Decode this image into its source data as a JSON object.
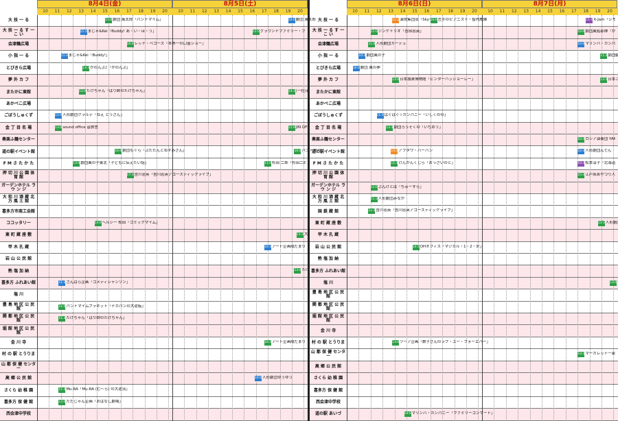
{
  "days": [
    {
      "label": "8月4日(金)",
      "hours": [
        "10",
        "11",
        "12",
        "13",
        "14",
        "15",
        "16",
        "17",
        "18",
        "19",
        "20"
      ]
    },
    {
      "label": "8月5日(土)",
      "hours": [
        "10",
        "11",
        "12",
        "13",
        "14",
        "15",
        "16",
        "17",
        "18",
        "19",
        "20"
      ]
    },
    {
      "label": "8月6日(日)",
      "hours": [
        "10",
        "11",
        "12",
        "13",
        "14",
        "15",
        "16",
        "17",
        "18",
        "19",
        "20"
      ]
    },
    {
      "label": "8月7日(月)",
      "hours": [
        "10",
        "11",
        "12",
        "13",
        "14",
        "15",
        "16",
        "17",
        "18",
        "19",
        "20"
      ]
    }
  ],
  "left_venues": [
    "大 技 一 る",
    "大 技 一 る す 一 こ い",
    "会津鶴広場",
    "小 指 一 る",
    "とびきら広場",
    "夢 外 カ フ",
    "またかに東館",
    "あかべこ広場",
    "ごぼうしゅくず",
    "金 丁 目 名 場",
    "奏楽ふ鶴センター",
    "道の駅イベント館",
    "F M さ た か た",
    "押 切 川 公 園 体 育 館",
    "ガーデンホテル ラ ウ ン ジ",
    "大 和 川 酒 蔵 北 方 風 土 館",
    "喜多方市商工会館",
    "ココッタリー",
    "東 町 蔵 座 敷",
    "甲 木 孔 蔵",
    "岩 山 公 民 館",
    "熱 塩 加 納",
    "喜多方 ふれあい館",
    "塩 川",
    "豊 島 地 区 公 民 館",
    "関 都 地 区 公 民 館",
    "堀 館 地 区 公 民 館",
    "金 川 寺",
    "村 の 駅 とうりま",
    "山 都 保 健 センター",
    "高 郷 公 民 館",
    "さくら 幼 稚 園",
    "喜多方 保 健 館",
    "西会津中学校"
  ],
  "right_venues": [
    "大 技 一 る",
    "大 技 一 る す 一 こ い",
    "会津鶴広場",
    "小 指 一 る",
    "とびきら広場",
    "夢 外 カ フ",
    "またかに東館",
    "あかべこ広場",
    "ごぼうしゅくず",
    "金 丁 目 名 場",
    "奏楽ふ鶴センター",
    "道の駅イベント館",
    "F M さ た か た",
    "押 切 川 公 園 体 育 館",
    "ガーデンホテル ラ ウ ン ジ",
    "大 和 川 酒 蔵 北 方 風 土 館",
    "国 鉄 蔵 館",
    "東 町 蔵 座 敷",
    "甲 木 孔 蔵",
    "岩 山 公 民 館",
    "熱 塩 加 納",
    "喜多方 ふれあい館",
    "塩 川",
    "豊 島 地 区 公 民 館",
    "関 都 地 区 公 民 館",
    "堀 館 地 区 公 民 館",
    "金 川 寺",
    "村 の 駅 とうりま",
    "山 都 保 健 センター",
    "高 郷 公 民 館",
    "さくら 幼 稚 園",
    "喜多方 保 健 館",
    "西会津中学校",
    "道の駅 あいづ"
  ],
  "events_left": [
    {
      "row": 0,
      "h": 15.2,
      "t": "13:00",
      "text": "劇団 風太郎「パントマイム」",
      "c": "g"
    },
    {
      "row": 1,
      "h": 13.1,
      "t": "11:30",
      "text": "まじゃ&Kei「Buddy! あ・い・ほ・う」",
      "c": "b"
    },
    {
      "row": 2,
      "h": 17.0,
      "t": "16:00",
      "text": "レッド・ペコーズ「世界一の口笛ショー」",
      "c": "g"
    },
    {
      "row": 3,
      "h": 11.5,
      "t": "11:30",
      "text": "まじゃ&Kei「Buddy!」",
      "c": "b"
    },
    {
      "row": 4,
      "h": 13.3,
      "t": "13:30",
      "text": "かのんぶ♪「かのんぶ」",
      "c": "g"
    },
    {
      "row": 6,
      "h": 13.0,
      "t": "13:00",
      "text": "たけちゃん「はり師のたけちゃん」",
      "c": "g"
    },
    {
      "row": 8,
      "h": 11.0,
      "t": "11:00",
      "text": "人形劇団クラルテ「ねえ とうさん」",
      "c": "b"
    },
    {
      "row": 9,
      "h": 11.0,
      "t": "13:00",
      "text": "sound office 音旅舎",
      "c": "g"
    },
    {
      "row": 11,
      "h": 16.0,
      "t": "16:00",
      "text": "劇団もぐら「ぶたたんとねずみさん」",
      "c": "g"
    },
    {
      "row": 12,
      "h": 12.5,
      "t": "13:00",
      "text": "劇団風の子東北「子どもに伝えたい話」",
      "c": "g"
    },
    {
      "row": 13,
      "h": 17.0,
      "t": "17:30",
      "text": "吉川忠英「吉川忠英アコースティックライブ」",
      "c": "g"
    },
    {
      "row": 17,
      "h": 14.3,
      "t": "14:00",
      "text": "ヘルシー 松田「コミックマイム」",
      "c": "g"
    },
    {
      "row": 22,
      "h": 11.3,
      "t": "11:30",
      "text": "ざんばら企画「コメディシャンソン」",
      "c": "b"
    },
    {
      "row": 24,
      "h": 11.3,
      "t": "11:00",
      "text": "パントマイムプラネット「チカパンの大逆転」",
      "c": "g"
    },
    {
      "row": 25,
      "h": 11.3,
      "t": "11:30",
      "text": "たけちゃん「はり師のたけちゃん」",
      "c": "g"
    },
    {
      "row": 31,
      "h": 11.3,
      "t": "11:30",
      "text": "Mu-RA「Mu-RA (む〜ら) の大逆流」",
      "c": "g"
    },
    {
      "row": 32,
      "h": 11.3,
      "t": "13:00",
      "text": "ただじゃん企画「おはなし劇場」",
      "c": "g"
    }
  ],
  "events_left2": [
    {
      "row": 0,
      "h": 30.5,
      "t": "10:00",
      "text": "劇団 風太郎 マジックショー",
      "c": "b"
    },
    {
      "row": 1,
      "h": 27.5,
      "t": "11:00",
      "text": "グラウンドファミリー・ブレジャー",
      "c": "g"
    },
    {
      "row": 3,
      "h": 33.0,
      "t": "14:00",
      "text": "日本独楽博物館「ビンター タンレーハッショーレー」",
      "c": "g"
    },
    {
      "row": 6,
      "h": 30.5,
      "t": "14:30",
      "text": "(一社)喜多方協会「喜多方劇場」",
      "c": "g"
    },
    {
      "row": 8,
      "h": 35.0,
      "t": "16:00",
      "text": "はぐはぐ☆カンパニー",
      "c": "o"
    },
    {
      "row": 9,
      "h": 30.5,
      "t": "11:00",
      "text": "JIN OFFICE「ジン・マジスケ」",
      "c": "g"
    },
    {
      "row": 11,
      "h": 31.0,
      "t": "10:00",
      "text": "パントマイムプラネット",
      "c": "g"
    },
    {
      "row": 12,
      "h": 28.5,
      "t": "11:00",
      "text": "杉田 二郎「杉田二郎コンサート」",
      "c": "g"
    },
    {
      "row": 13,
      "h": 35.0,
      "t": "16:00",
      "text": "ざんばら企画",
      "c": "o"
    },
    {
      "row": 15,
      "h": 34.0,
      "t": "14:30",
      "text": "日本サロンコンサート協会",
      "c": "g"
    },
    {
      "row": 18,
      "h": 31.2,
      "t": "11:30",
      "text": "大部 裕太「大部裕太」",
      "c": "g"
    },
    {
      "row": 18,
      "h": 37.2,
      "t": "15:00",
      "text": "ヘルシー 松田「コミックマイム」",
      "c": "g"
    },
    {
      "row": 19,
      "h": 28.5,
      "t": "10:30",
      "text": "アート企画陽だまり",
      "c": "b"
    },
    {
      "row": 21,
      "h": 31.0,
      "t": "13:00",
      "text": "たけちゃん「はり師のたけちゃん」",
      "c": "g"
    },
    {
      "row": 23,
      "h": 36.5,
      "t": "16:00",
      "text": "レッド・ペコーズ「世界一の口笛ショー」",
      "c": "g"
    },
    {
      "row": 27,
      "h": 28.5,
      "t": "10:30",
      "text": "アート企画陽だまり「高場さとし」",
      "c": "g"
    },
    {
      "row": 30,
      "h": 27.7,
      "t": "10:00",
      "text": "人形劇団ゆうゆう",
      "c": "b"
    },
    {
      "row": 33,
      "h": 32.5,
      "t": "13:30",
      "text": "Mu-RA「Mu-RA (む〜ら) の大逆流」",
      "c": "g"
    }
  ],
  "events_right": [
    {
      "row": 0,
      "h": 13.3,
      "t": "11:30",
      "text": "演技集団旧「Sky〜」",
      "c": "o"
    },
    {
      "row": 0,
      "h": 16.5,
      "t": "16:00",
      "text": "左手のピアニスト・智内威雄",
      "c": "g"
    },
    {
      "row": 1,
      "h": 11.5,
      "t": "11:00",
      "text": "ジンケトリオ「吉田忠英」",
      "c": "g"
    },
    {
      "row": 2,
      "h": 11.3,
      "t": "11:00",
      "text": "人形劇団カーデュ",
      "c": "g"
    },
    {
      "row": 3,
      "h": 10.5,
      "t": "10:30",
      "text": "劇団風の子",
      "c": "b"
    },
    {
      "row": 4,
      "h": 10.0,
      "t": "10:00",
      "text": "劇団 風の夢",
      "c": "b"
    },
    {
      "row": 5,
      "h": 13.3,
      "t": "13:00",
      "text": "日本独楽博物館「ビンターハッショーレー」",
      "c": "g"
    },
    {
      "row": 8,
      "h": 12.0,
      "t": "11:30",
      "text": "はぐはぐ☆カンパニー「いしくのの」",
      "c": "b"
    },
    {
      "row": 9,
      "h": 12.8,
      "t": "13:30",
      "text": "劇団ろうそくの「いちおう」",
      "c": "g"
    },
    {
      "row": 11,
      "h": 13.2,
      "t": "13:30",
      "text": "アフタワ・バーバン",
      "c": "o"
    },
    {
      "row": 12,
      "h": 13.2,
      "t": "11:30",
      "text": "けんかんくじら「おっさいのと」",
      "c": "g"
    },
    {
      "row": 14,
      "h": 11.5,
      "t": "11:00",
      "text": "ぶんけとは「ちゅーすら」",
      "c": "g"
    },
    {
      "row": 15,
      "h": 11.5,
      "t": "11:30",
      "text": "人形劇団みなか",
      "c": "g"
    },
    {
      "row": 16,
      "h": 11.3,
      "t": "11:30",
      "text": "吉川忠英「吉川忠英アコースティックライブ」",
      "c": "g"
    },
    {
      "row": 19,
      "h": 15.0,
      "t": "14:30",
      "text": "OHオフィス「マジカル・1・2・3!」",
      "c": "g"
    },
    {
      "row": 27,
      "h": 13.3,
      "t": "13:00",
      "text": "ツーア企画「数子さんのラブ・ユー・フォーエバー」",
      "c": "g"
    },
    {
      "row": 33,
      "h": 14.3,
      "t": "14:00",
      "text": "マリンバ・カンパニー「ファミリーコンサート」",
      "c": "g"
    }
  ],
  "events_right2": [
    {
      "row": 0,
      "h": 29.5,
      "t": "11:00",
      "text": "X-Jam「シモシュとあそぼう」",
      "c": "p"
    },
    {
      "row": 1,
      "h": 28.8,
      "t": "10:00",
      "text": "劇団風船部隊「かならでなんだ?!」",
      "c": "g"
    },
    {
      "row": 2,
      "h": 28.8,
      "t": "10:00",
      "text": "マリンバ・カンパニー",
      "c": "b"
    },
    {
      "row": 3,
      "h": 30.7,
      "t": "11:30",
      "text": "劇団動物エンターテイメント",
      "c": "g"
    },
    {
      "row": 4,
      "h": 33.3,
      "t": "16:00",
      "text": "ゲリラ公演「なぁにで?おたのしみ!」",
      "c": "g"
    },
    {
      "row": 5,
      "h": 30.7,
      "t": "13:30",
      "text": "日本こまをたし遊喜会",
      "c": "g"
    },
    {
      "row": 7,
      "h": 32.5,
      "t": "13:30",
      "text": "人形劇団クスクス「どんぐり」",
      "c": "g"
    },
    {
      "row": 9,
      "h": 33.3,
      "t": "14:00",
      "text": "OHオフィス「マジカル・1・2・3!」",
      "c": "g"
    },
    {
      "row": 10,
      "h": 28.8,
      "t": "10:30",
      "text": "ロシア演奏団 YAMA",
      "c": "g"
    },
    {
      "row": 11,
      "h": 28.8,
      "t": "10:30",
      "text": "人形劇団んでん",
      "c": "b"
    },
    {
      "row": 12,
      "h": 28.8,
      "t": "10:30",
      "text": "松本淳子「北海道から」",
      "c": "p"
    },
    {
      "row": 13,
      "h": 28.8,
      "t": "10:30",
      "text": "江戸糸あやつり人形「ジョ・ジョ・ジ」",
      "c": "g"
    },
    {
      "row": 15,
      "h": 33.3,
      "t": "14:00",
      "text": "左手のピアニスト・智内威雄",
      "c": "g"
    },
    {
      "row": 17,
      "h": 30.5,
      "t": "13:30",
      "text": "人形劇団えりっこ「ふしぎの森のヤーヤー・他」",
      "c": "g"
    },
    {
      "row": 22,
      "h": 31.5,
      "t": "13:00",
      "text": "ほんわかシアター「トラックとちすけ」",
      "c": "g"
    },
    {
      "row": 24,
      "h": 33.0,
      "t": "15:00",
      "text": "なにぬの屋「春でつくれる紙芝居!?」",
      "c": "g"
    },
    {
      "row": 28,
      "h": 28.8,
      "t": "10:30",
      "text": "マーガレット一家「たっちゃんの紙芝居 with りさちゃん」",
      "c": "g"
    }
  ]
}
